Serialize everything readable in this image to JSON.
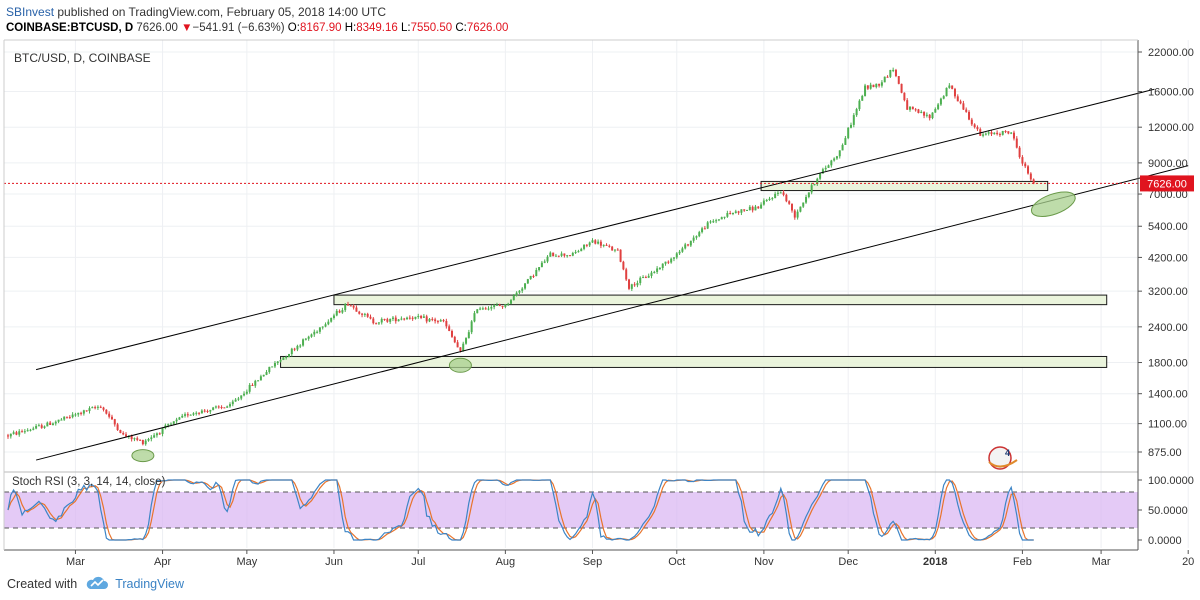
{
  "header": {
    "author": "SBInvest",
    "published": "published on TradingView.com, February 05, 2018 14:00 UTC",
    "symbol": "COINBASE:BTCUSD, D",
    "last": "7626.00",
    "change": "−541.91 (−6.63%)",
    "o_label": "O:",
    "o_value": "8167.90",
    "h_label": "H:",
    "h_value": "8349.16",
    "l_label": "L:",
    "l_value": "7550.50",
    "c_label": "C:",
    "c_value": "7626.00"
  },
  "chart_data": {
    "type": "candlestick",
    "title": "BTC/USD, D, COINBASE",
    "y_scale": "log",
    "y_ticks": [
      "22000.00",
      "16000.00",
      "12000.00",
      "9000.00",
      "7000.00",
      "5400.00",
      "4200.00",
      "3200.00",
      "2400.00",
      "1800.00",
      "1400.00",
      "1100.00",
      "875.00"
    ],
    "last_price_label": "7626.00",
    "last_price": 7626,
    "x_ticks": [
      "Mar",
      "Apr",
      "May",
      "Jun",
      "Jul",
      "Aug",
      "Sep",
      "Oct",
      "Nov",
      "Dec",
      "2018",
      "Feb",
      "Mar",
      "20"
    ],
    "x_range": [
      "2017-02-05",
      "2018-04-01"
    ],
    "price_path": [
      [
        "2017-02-05",
        1000
      ],
      [
        "2017-02-20",
        1100
      ],
      [
        "2017-03-10",
        1270
      ],
      [
        "2017-03-18",
        1000
      ],
      [
        "2017-03-25",
        950
      ],
      [
        "2017-04-10",
        1190
      ],
      [
        "2017-04-25",
        1270
      ],
      [
        "2017-05-10",
        1750
      ],
      [
        "2017-05-25",
        2300
      ],
      [
        "2017-06-06",
        2900
      ],
      [
        "2017-06-15",
        2500
      ],
      [
        "2017-06-28",
        2600
      ],
      [
        "2017-07-10",
        2500
      ],
      [
        "2017-07-16",
        1950
      ],
      [
        "2017-07-22",
        2800
      ],
      [
        "2017-08-01",
        2850
      ],
      [
        "2017-08-08",
        3400
      ],
      [
        "2017-08-17",
        4300
      ],
      [
        "2017-08-25",
        4300
      ],
      [
        "2017-09-01",
        4800
      ],
      [
        "2017-09-10",
        4400
      ],
      [
        "2017-09-14",
        3300
      ],
      [
        "2017-09-22",
        3700
      ],
      [
        "2017-10-02",
        4400
      ],
      [
        "2017-10-12",
        5500
      ],
      [
        "2017-10-20",
        6000
      ],
      [
        "2017-10-30",
        6300
      ],
      [
        "2017-11-07",
        7200
      ],
      [
        "2017-11-12",
        5900
      ],
      [
        "2017-11-20",
        8000
      ],
      [
        "2017-11-28",
        9900
      ],
      [
        "2017-12-07",
        16500
      ],
      [
        "2017-12-12",
        17000
      ],
      [
        "2017-12-17",
        19300
      ],
      [
        "2017-12-22",
        14000
      ],
      [
        "2017-12-30",
        13000
      ],
      [
        "2018-01-06",
        16800
      ],
      [
        "2018-01-10",
        14500
      ],
      [
        "2018-01-17",
        11200
      ],
      [
        "2018-01-22",
        11500
      ],
      [
        "2018-01-28",
        11500
      ],
      [
        "2018-02-01",
        9000
      ],
      [
        "2018-02-05",
        7626
      ]
    ],
    "channel_upper": [
      [
        "2017-02-15",
        1700
      ],
      [
        "2018-03-20",
        16300
      ]
    ],
    "channel_lower": [
      [
        "2017-02-15",
        820
      ],
      [
        "2018-04-01",
        8800
      ]
    ],
    "support_zones": [
      {
        "from": "2017-06-01",
        "to": "2018-03-03",
        "low": 2870,
        "high": 3100
      },
      {
        "from": "2017-05-13",
        "to": "2018-03-03",
        "low": 1730,
        "high": 1890
      },
      {
        "from": "2017-10-31",
        "to": "2018-02-10",
        "low": 7200,
        "high": 7750
      }
    ],
    "highlight_ellipses": [
      {
        "date": "2017-03-25",
        "price": 850
      },
      {
        "date": "2017-07-16",
        "price": 1760
      },
      {
        "date": "2018-02-12",
        "price": 6450
      }
    ],
    "indicator": {
      "name": "Stoch RSI (3, 3, 14, 14, close)",
      "y_ticks": [
        "100.0000",
        "50.0000",
        "0.0000"
      ],
      "upper_band": 80,
      "lower_band": 20,
      "k_color": "#3d85c6",
      "d_color": "#e8742c",
      "band_fill": "#d9b3f2"
    },
    "colors": {
      "up": "#4caf50",
      "down": "#e04040",
      "channel": "#000000",
      "zone_fill": "#e6f2d6",
      "ellipse_fill": "#a8d08d",
      "price_line": "#e0141f"
    },
    "badge": {
      "text": "4"
    }
  },
  "footer": {
    "created_with": "Created with",
    "brand": "TradingView"
  }
}
